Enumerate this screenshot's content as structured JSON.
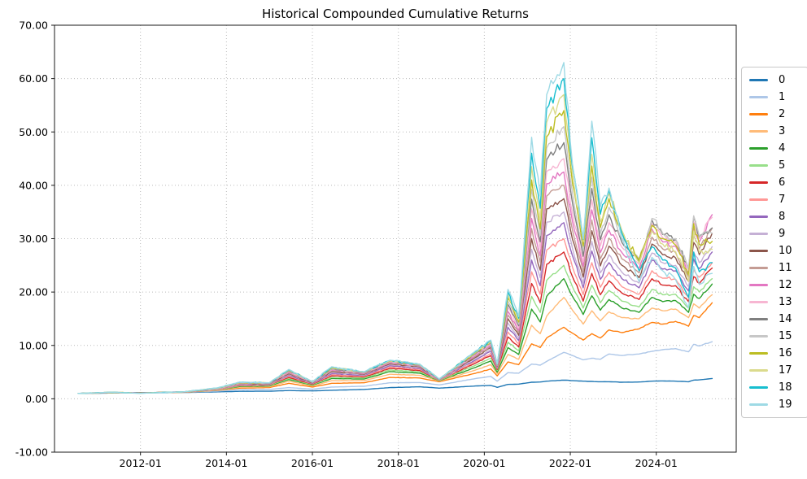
{
  "title": "Historical Compounded Cumulative Returns",
  "chart_data": {
    "type": "line",
    "title": "Historical Compounded Cumulative Returns",
    "xlabel": "",
    "ylabel": "",
    "x_unit": "decimal_year",
    "xlim": [
      2010.0,
      2025.86
    ],
    "ylim": [
      -10,
      70
    ],
    "grid": "dotted",
    "legend_position": "outside-right",
    "x_ticks": {
      "values": [
        2012,
        2014,
        2016,
        2018,
        2020,
        2022,
        2024
      ],
      "labels": [
        "2012-01",
        "2014-01",
        "2016-01",
        "2018-01",
        "2020-01",
        "2022-01",
        "2024-01"
      ]
    },
    "y_ticks": {
      "values": [
        -10,
        0,
        10,
        20,
        30,
        40,
        50,
        60,
        70
      ],
      "labels": [
        "-10.00",
        "0.00",
        "10.00",
        "20.00",
        "30.00",
        "40.00",
        "50.00",
        "60.00",
        "70.00"
      ]
    },
    "x": [
      2010.55,
      2011.3,
      2012.0,
      2013.0,
      2013.8,
      2014.3,
      2015.0,
      2015.45,
      2016.0,
      2016.45,
      2017.2,
      2017.8,
      2018.5,
      2018.95,
      2019.8,
      2020.15,
      2020.3,
      2020.55,
      2020.8,
      2021.1,
      2021.3,
      2021.45,
      2021.85,
      2022.05,
      2022.3,
      2022.5,
      2022.7,
      2022.9,
      2023.2,
      2023.6,
      2023.9,
      2024.15,
      2024.45,
      2024.75,
      2024.87,
      2025.0,
      2025.3
    ],
    "series": [
      {
        "name": "0",
        "color": "#1f77b4",
        "values": [
          1.0,
          1.08,
          1.1,
          1.18,
          1.3,
          1.4,
          1.42,
          1.55,
          1.48,
          1.6,
          1.75,
          2.1,
          2.25,
          2.0,
          2.4,
          2.5,
          2.15,
          2.7,
          2.75,
          3.1,
          3.15,
          3.3,
          3.5,
          3.4,
          3.3,
          3.25,
          3.2,
          3.2,
          3.1,
          3.15,
          3.3,
          3.35,
          3.3,
          3.2,
          3.5,
          3.55,
          3.8
        ]
      },
      {
        "name": "1",
        "color": "#aec7e8",
        "values": [
          1.0,
          1.1,
          1.1,
          1.2,
          1.45,
          1.7,
          1.75,
          2.1,
          1.8,
          2.2,
          2.35,
          3.0,
          3.05,
          2.6,
          3.8,
          4.2,
          3.3,
          4.9,
          4.8,
          6.5,
          6.3,
          7.0,
          8.7,
          8.1,
          7.3,
          7.6,
          7.4,
          8.4,
          8.1,
          8.4,
          8.9,
          9.2,
          9.4,
          8.8,
          10.2,
          9.9,
          10.7
        ]
      },
      {
        "name": "2",
        "color": "#ff7f0e",
        "values": [
          1.0,
          1.12,
          1.12,
          1.22,
          1.6,
          2.0,
          2.1,
          2.9,
          2.2,
          2.9,
          3.0,
          4.0,
          3.9,
          3.2,
          4.8,
          5.6,
          4.3,
          6.9,
          6.4,
          10.3,
          9.6,
          11.4,
          13.4,
          12.3,
          11.0,
          12.2,
          11.4,
          12.9,
          12.4,
          13.1,
          14.3,
          14.0,
          14.5,
          13.6,
          15.6,
          15.2,
          18.0
        ]
      },
      {
        "name": "3",
        "color": "#ffbb78",
        "values": [
          1.0,
          1.12,
          1.1,
          1.22,
          1.65,
          2.15,
          2.25,
          3.3,
          2.4,
          3.4,
          3.4,
          4.6,
          4.4,
          3.3,
          5.4,
          6.4,
          4.7,
          8.3,
          7.4,
          13.8,
          12.2,
          15.5,
          19.0,
          16.6,
          14.0,
          16.5,
          14.6,
          16.3,
          15.2,
          15.0,
          17.0,
          16.5,
          16.8,
          15.2,
          17.8,
          17.0,
          19.5
        ]
      },
      {
        "name": "4",
        "color": "#2ca02c",
        "values": [
          1.0,
          1.15,
          1.12,
          1.25,
          1.7,
          2.3,
          2.4,
          3.6,
          2.55,
          3.8,
          3.7,
          5.1,
          4.8,
          3.4,
          5.9,
          7.1,
          5.0,
          9.6,
          8.3,
          16.8,
          14.4,
          19.2,
          22.5,
          19.2,
          15.8,
          19.3,
          16.6,
          18.6,
          17.0,
          16.2,
          19.0,
          18.2,
          18.4,
          16.2,
          19.6,
          18.8,
          21.5
        ]
      },
      {
        "name": "5",
        "color": "#98df8a",
        "values": [
          1.0,
          1.15,
          1.1,
          1.25,
          1.7,
          2.4,
          2.5,
          3.8,
          2.65,
          4.0,
          3.9,
          5.4,
          5.05,
          3.45,
          6.3,
          7.6,
          5.3,
          10.6,
          9.0,
          19.2,
          16.2,
          22.2,
          25.0,
          21.0,
          17.0,
          21.3,
          18.0,
          20.3,
          18.3,
          17.2,
          20.5,
          19.5,
          19.6,
          17.0,
          21.0,
          20.0,
          22.5
        ]
      },
      {
        "name": "6",
        "color": "#d62728",
        "values": [
          1.0,
          1.15,
          1.12,
          1.25,
          1.75,
          2.5,
          2.6,
          4.0,
          2.75,
          4.3,
          4.1,
          5.7,
          5.3,
          3.5,
          6.7,
          8.1,
          5.5,
          11.6,
          9.7,
          21.6,
          18.0,
          25.2,
          27.5,
          22.9,
          18.3,
          23.5,
          19.5,
          22.1,
          19.8,
          18.6,
          22.5,
          21.3,
          21.2,
          18.2,
          22.9,
          21.6,
          24.5
        ]
      },
      {
        "name": "7",
        "color": "#ff9896",
        "values": [
          1.0,
          1.15,
          1.1,
          1.25,
          1.75,
          2.55,
          2.65,
          4.2,
          2.85,
          4.5,
          4.25,
          5.95,
          5.5,
          3.5,
          7.0,
          8.5,
          5.7,
          12.5,
          10.3,
          23.8,
          19.6,
          27.9,
          30.0,
          24.7,
          19.5,
          25.5,
          20.9,
          23.7,
          21.0,
          19.6,
          24.0,
          22.6,
          22.4,
          19.0,
          24.3,
          22.8,
          25.5
        ]
      },
      {
        "name": "8",
        "color": "#9467bd",
        "values": [
          1.0,
          1.18,
          1.1,
          1.28,
          1.8,
          2.65,
          2.7,
          4.4,
          2.9,
          4.7,
          4.4,
          6.2,
          5.7,
          3.55,
          7.3,
          8.9,
          5.85,
          13.4,
          10.9,
          26.0,
          21.2,
          30.6,
          33.0,
          26.8,
          20.8,
          27.7,
          22.4,
          25.5,
          22.5,
          20.8,
          26.0,
          24.3,
          24.0,
          20.2,
          26.2,
          24.4,
          27.5
        ]
      },
      {
        "name": "9",
        "color": "#c5b0d5",
        "values": [
          1.0,
          1.18,
          1.08,
          1.28,
          1.8,
          2.7,
          2.75,
          4.55,
          3.0,
          4.9,
          4.5,
          6.4,
          5.85,
          3.55,
          7.6,
          9.3,
          6.0,
          14.2,
          11.4,
          28.0,
          22.7,
          33.1,
          35.0,
          28.2,
          21.7,
          29.5,
          23.6,
          27.0,
          23.7,
          21.7,
          27.3,
          25.5,
          25.0,
          21.0,
          27.5,
          25.5,
          28.5
        ]
      },
      {
        "name": "10",
        "color": "#8c564b",
        "values": [
          1.0,
          1.18,
          1.1,
          1.28,
          1.85,
          2.75,
          2.8,
          4.7,
          3.0,
          5.1,
          4.6,
          6.55,
          6.0,
          3.6,
          7.8,
          9.6,
          6.1,
          15.0,
          11.9,
          30.0,
          24.1,
          35.6,
          37.5,
          29.9,
          22.8,
          31.5,
          24.9,
          28.6,
          25.0,
          22.7,
          29.0,
          27.0,
          26.4,
          22.0,
          29.3,
          27.0,
          31.0
        ]
      },
      {
        "name": "11",
        "color": "#c49c94",
        "values": [
          1.0,
          1.18,
          1.08,
          1.28,
          1.85,
          2.8,
          2.85,
          4.85,
          3.05,
          5.25,
          4.7,
          6.7,
          6.1,
          3.6,
          8.0,
          9.9,
          6.2,
          15.7,
          12.4,
          31.9,
          25.5,
          38.0,
          40.0,
          31.6,
          23.8,
          33.5,
          26.2,
          30.1,
          26.2,
          23.6,
          30.3,
          28.1,
          27.4,
          22.8,
          30.6,
          28.1,
          32.0
        ]
      },
      {
        "name": "12",
        "color": "#e377c2",
        "values": [
          1.0,
          1.2,
          1.1,
          1.3,
          1.9,
          2.85,
          2.9,
          5.0,
          3.1,
          5.4,
          4.75,
          6.8,
          6.2,
          3.65,
          8.2,
          10.1,
          6.25,
          16.4,
          12.8,
          33.8,
          26.8,
          40.3,
          42.5,
          33.2,
          24.8,
          35.4,
          27.4,
          31.6,
          27.4,
          24.5,
          31.8,
          29.4,
          28.6,
          23.6,
          32.2,
          29.4,
          34.5
        ]
      },
      {
        "name": "13",
        "color": "#f7b6d2",
        "values": [
          1.0,
          1.2,
          1.08,
          1.3,
          1.9,
          2.9,
          2.9,
          5.1,
          3.1,
          5.5,
          4.85,
          6.9,
          6.25,
          3.65,
          8.35,
          10.3,
          6.3,
          17.1,
          13.3,
          35.6,
          28.1,
          42.6,
          45.0,
          34.8,
          25.7,
          37.3,
          28.6,
          33.0,
          28.4,
          25.2,
          32.8,
          30.2,
          29.3,
          24.1,
          33.2,
          30.0,
          34.0
        ]
      },
      {
        "name": "14",
        "color": "#7f7f7f",
        "values": [
          1.0,
          1.2,
          1.08,
          1.3,
          1.95,
          2.95,
          2.95,
          5.2,
          3.15,
          5.6,
          4.9,
          7.0,
          6.3,
          3.65,
          8.5,
          10.5,
          6.35,
          17.7,
          13.7,
          37.4,
          29.4,
          44.8,
          48.0,
          36.7,
          26.7,
          39.4,
          29.8,
          34.5,
          29.3,
          25.8,
          33.5,
          30.8,
          29.8,
          24.4,
          34.0,
          30.4,
          32.0
        ]
      },
      {
        "name": "15",
        "color": "#c7c7c7",
        "values": [
          1.0,
          1.2,
          1.05,
          1.3,
          1.95,
          3.0,
          3.0,
          5.3,
          3.15,
          5.7,
          4.95,
          7.05,
          6.35,
          3.7,
          8.6,
          10.6,
          6.4,
          18.3,
          14.0,
          39.2,
          30.6,
          47.0,
          51.0,
          38.6,
          27.7,
          41.5,
          31.0,
          35.9,
          30.1,
          26.2,
          33.8,
          31.0,
          30.0,
          24.4,
          34.3,
          30.5,
          31.0
        ]
      },
      {
        "name": "16",
        "color": "#bcbd22",
        "values": [
          1.0,
          1.22,
          1.08,
          1.3,
          2.0,
          3.0,
          3.0,
          5.35,
          3.2,
          5.8,
          5.0,
          7.1,
          6.4,
          3.7,
          8.7,
          10.7,
          6.4,
          18.9,
          14.4,
          41.0,
          31.8,
          49.1,
          54.0,
          40.4,
          28.6,
          43.6,
          32.1,
          37.5,
          31.0,
          26.0,
          32.5,
          30.0,
          28.8,
          23.2,
          32.8,
          28.9,
          29.5
        ]
      },
      {
        "name": "17",
        "color": "#dbdb8d",
        "values": [
          1.0,
          1.22,
          1.05,
          1.3,
          2.0,
          3.05,
          3.0,
          5.4,
          3.2,
          5.9,
          5.0,
          7.15,
          6.4,
          3.7,
          8.8,
          10.8,
          6.45,
          19.5,
          14.8,
          43.5,
          33.5,
          51.8,
          57.0,
          42.2,
          29.4,
          45.8,
          33.2,
          38.5,
          31.5,
          25.5,
          31.5,
          29.0,
          27.6,
          22.0,
          31.3,
          27.4,
          28.0
        ]
      },
      {
        "name": "18",
        "color": "#17becf",
        "values": [
          1.0,
          1.22,
          1.05,
          1.3,
          2.05,
          3.1,
          3.0,
          5.45,
          3.2,
          5.95,
          5.05,
          7.2,
          6.45,
          3.7,
          8.9,
          10.9,
          6.45,
          20.0,
          15.1,
          46.0,
          35.7,
          54.4,
          60.0,
          43.5,
          29.9,
          48.9,
          34.6,
          39.0,
          31.0,
          24.0,
          28.5,
          26.0,
          24.5,
          19.0,
          27.5,
          23.8,
          25.5
        ]
      },
      {
        "name": "19",
        "color": "#9edae5",
        "values": [
          1.0,
          1.22,
          1.02,
          1.3,
          2.05,
          3.1,
          3.0,
          5.5,
          3.2,
          6.0,
          5.05,
          7.2,
          6.45,
          3.7,
          9.0,
          11.0,
          6.5,
          20.5,
          15.4,
          49.0,
          38.0,
          57.0,
          63.0,
          44.0,
          30.0,
          52.0,
          36.0,
          39.5,
          30.0,
          22.0,
          26.5,
          24.0,
          22.3,
          17.0,
          24.8,
          21.4,
          23.5
        ]
      }
    ],
    "style": {
      "grid_color": "#bbbbbb",
      "spine_color": "#1a1a1a",
      "tick_label_color": "#000000",
      "background": "#ffffff"
    }
  }
}
